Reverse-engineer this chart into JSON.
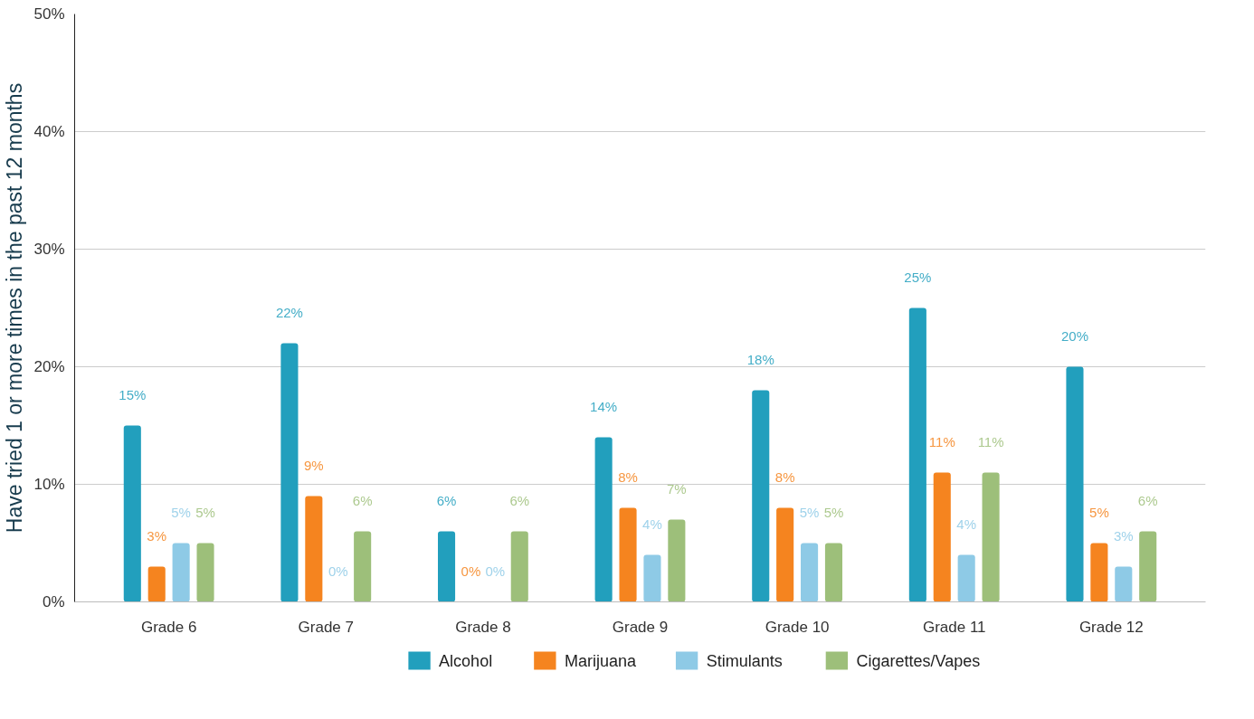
{
  "chart_data": {
    "type": "bar",
    "ylabel": "Have tried 1 or more times in the past 12 months",
    "categories": [
      "Grade 6",
      "Grade 7",
      "Grade 8",
      "Grade 9",
      "Grade 10",
      "Grade 11",
      "Grade 12"
    ],
    "ylim": [
      0,
      50
    ],
    "yticks": [
      {
        "value": 0,
        "label": "0%"
      },
      {
        "value": 10,
        "label": "10%"
      },
      {
        "value": 20,
        "label": "20%"
      },
      {
        "value": 30,
        "label": "30%"
      },
      {
        "value": 40,
        "label": "40%"
      },
      {
        "value": 50,
        "label": "50%"
      }
    ],
    "grid": "y",
    "legend": "bottom",
    "series": [
      {
        "name": "Alcohol",
        "color": "#229fbd",
        "values": [
          15,
          22,
          6,
          14,
          18,
          25,
          20
        ],
        "value_labels": [
          "15%",
          "22%",
          "6%",
          "14%",
          "18%",
          "25%",
          "20%"
        ]
      },
      {
        "name": "Marijuana",
        "color": "#f5841f",
        "values": [
          3,
          9,
          0,
          8,
          8,
          11,
          5
        ],
        "value_labels": [
          "3%",
          "9%",
          "0%",
          "8%",
          "8%",
          "11%",
          "5%"
        ]
      },
      {
        "name": "Stimulants",
        "color": "#8ecae6",
        "values": [
          5,
          0,
          0,
          4,
          5,
          4,
          3
        ],
        "value_labels": [
          "5%",
          "0%",
          "0%",
          "4%",
          "5%",
          "4%",
          "3%"
        ]
      },
      {
        "name": "Cigarettes/Vapes",
        "color": "#9dbf7a",
        "values": [
          5,
          6,
          6,
          7,
          5,
          11,
          6
        ],
        "value_labels": [
          "5%",
          "6%",
          "6%",
          "7%",
          "5%",
          "11%",
          "6%"
        ]
      }
    ]
  }
}
